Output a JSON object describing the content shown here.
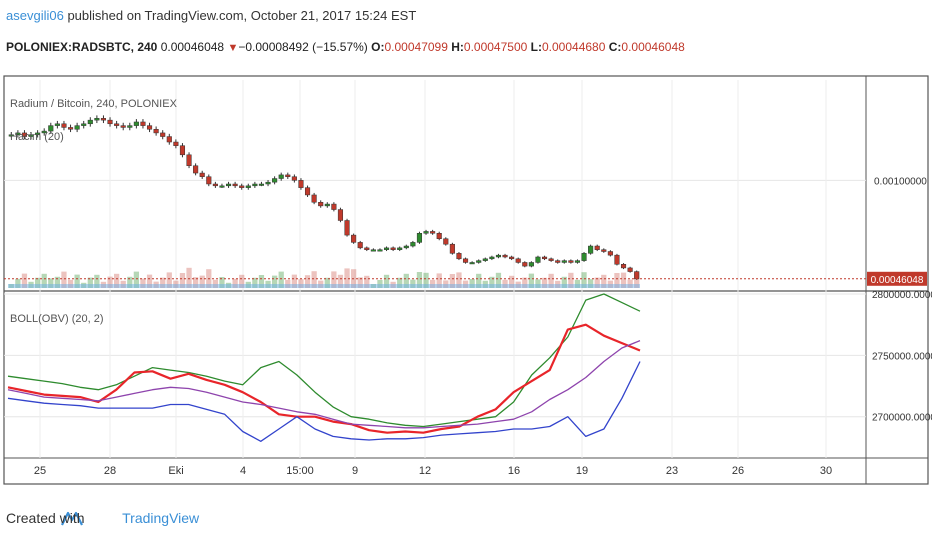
{
  "header": {
    "username": "asevgili06",
    "published_text": "published on TradingView.com, October 21, 2017 15:24 EST"
  },
  "ticker": {
    "symbol": "POLONIEX:RADSBTC, 240",
    "price": "0.00046048",
    "change": "−0.00008492 (−15.57%)",
    "open_label": "O:",
    "open": "0.00047099",
    "high_label": "H:",
    "high": "0.00047500",
    "low_label": "L:",
    "low": "0.00044680",
    "close_label": "C:",
    "close": "0.00046048"
  },
  "footer": {
    "created_with": "Created with",
    "brand": "TradingView"
  },
  "chart_data": [
    {
      "type": "candlestick",
      "title": "Radium / Bitcoin, 240, POLONIEX",
      "indicator": "Hacim (20)",
      "y_tick_label": "0.00100000",
      "last_price_label": "0.00046048",
      "ylim": [
        0.00041,
        0.00155
      ],
      "close_series": [
        0.00125,
        0.00126,
        0.00124,
        0.00125,
        0.00126,
        0.00127,
        0.0013,
        0.00131,
        0.00129,
        0.00128,
        0.0013,
        0.00131,
        0.00133,
        0.00134,
        0.00133,
        0.00131,
        0.0013,
        0.00129,
        0.0013,
        0.00132,
        0.0013,
        0.00128,
        0.00126,
        0.00124,
        0.00121,
        0.00119,
        0.00114,
        0.00108,
        0.00104,
        0.00102,
        0.00098,
        0.00097,
        0.00097,
        0.00098,
        0.00097,
        0.00096,
        0.00097,
        0.00098,
        0.00098,
        0.00099,
        0.00101,
        0.00103,
        0.00102,
        0.001,
        0.00096,
        0.00092,
        0.00088,
        0.00086,
        0.00087,
        0.00084,
        0.00078,
        0.0007,
        0.00066,
        0.00063,
        0.00062,
        0.00062,
        0.00062,
        0.00063,
        0.00062,
        0.00063,
        0.00064,
        0.00066,
        0.00071,
        0.00072,
        0.00071,
        0.00068,
        0.00065,
        0.0006,
        0.00057,
        0.00055,
        0.00055,
        0.00056,
        0.00057,
        0.00058,
        0.00059,
        0.00058,
        0.00057,
        0.00055,
        0.00053,
        0.00055,
        0.00058,
        0.00057,
        0.00056,
        0.00055,
        0.00056,
        0.00055,
        0.00056,
        0.0006,
        0.00064,
        0.00062,
        0.00061,
        0.00059,
        0.00054,
        0.00052,
        0.0005,
        0.00046
      ]
    },
    {
      "type": "line",
      "title": "BOLL(OBV) (20, 2)",
      "y_ticks": [
        "2800000.0000",
        "2750000.0000",
        "2700000.0000"
      ],
      "ylim": [
        2668000,
        2800000
      ],
      "x_tick_labels": [
        "25",
        "28",
        "Eki",
        "4",
        "15:00",
        "9",
        "12",
        "16",
        "19",
        "23",
        "26",
        "30"
      ],
      "series": [
        {
          "color": "#2e8b2e",
          "values": [
            2733000,
            2731000,
            2729000,
            2727000,
            2724000,
            2722000,
            2726000,
            2733000,
            2740000,
            2738000,
            2736000,
            2733000,
            2729000,
            2726000,
            2740000,
            2745000,
            2734000,
            2720000,
            2708000,
            2700000,
            2698000,
            2695000,
            2693000,
            2692000,
            2694000,
            2696000,
            2698000,
            2700000,
            2712000,
            2734000,
            2748000,
            2765000,
            2795000,
            2800000,
            2793000,
            2786000
          ]
        },
        {
          "color": "#e8252a",
          "values": [
            2724000,
            2721000,
            2718000,
            2717000,
            2716000,
            2712000,
            2722000,
            2736000,
            2737000,
            2731000,
            2735000,
            2730000,
            2726000,
            2720000,
            2712000,
            2702000,
            2700000,
            2700000,
            2696000,
            2694000,
            2689000,
            2687000,
            2688000,
            2687000,
            2690000,
            2692000,
            2700000,
            2706000,
            2720000,
            2729000,
            2738000,
            2771000,
            2775000,
            2766000,
            2760000,
            2754000
          ]
        },
        {
          "color": "#8e44ad",
          "values": [
            2722000,
            2719000,
            2716000,
            2715000,
            2714000,
            2713000,
            2716000,
            2719000,
            2722000,
            2724000,
            2723000,
            2720000,
            2716000,
            2712000,
            2710000,
            2707000,
            2704000,
            2702000,
            2698000,
            2694000,
            2693000,
            2692000,
            2691000,
            2691000,
            2692000,
            2693000,
            2694000,
            2696000,
            2698000,
            2704000,
            2714000,
            2722000,
            2732000,
            2745000,
            2756000,
            2762000
          ]
        },
        {
          "color": "#3344cc",
          "values": [
            2715000,
            2713000,
            2711000,
            2710000,
            2709000,
            2707000,
            2707000,
            2707000,
            2707000,
            2710000,
            2710000,
            2706000,
            2702000,
            2688000,
            2680000,
            2690000,
            2700000,
            2690000,
            2684000,
            2682000,
            2681000,
            2682000,
            2682000,
            2683000,
            2685000,
            2686000,
            2687000,
            2688000,
            2690000,
            2690000,
            2692000,
            2700000,
            2684000,
            2690000,
            2715000,
            2745000
          ]
        }
      ]
    }
  ]
}
